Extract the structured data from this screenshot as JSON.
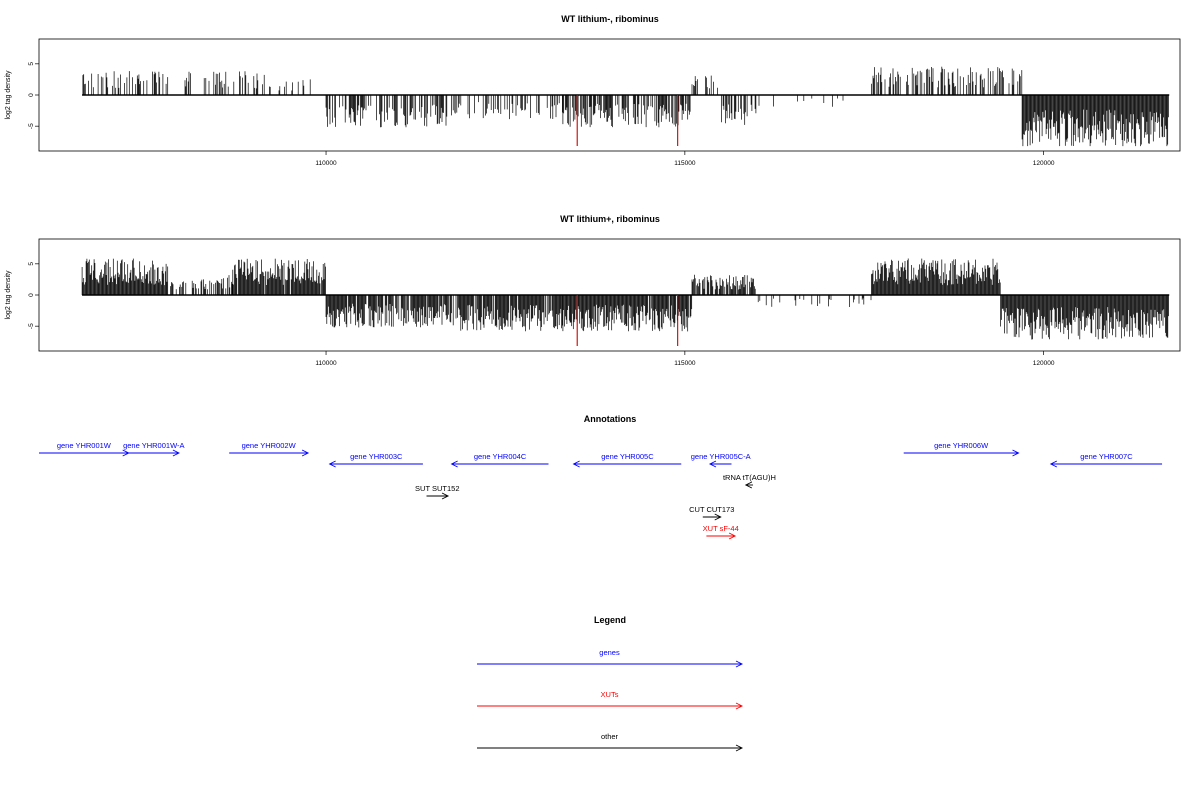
{
  "chart_data": [
    {
      "type": "bar",
      "title": "WT lithium-, ribominus",
      "ylabel": "log2 tag density",
      "xlim": [
        106000,
        121900
      ],
      "ylim": [
        -8.5,
        8.5
      ],
      "y_ticks": [
        -5,
        0,
        5
      ],
      "x_ticks": [
        110000,
        115000,
        120000
      ],
      "x_tick_labels": [
        "110000",
        "115000",
        "120000"
      ],
      "bar_color": "#000000",
      "highlight_color": "#cc0000",
      "highlights": [
        {
          "x": 113500,
          "value": -8.5
        },
        {
          "x": 114900,
          "value": -8.5
        }
      ],
      "density_profile": [
        {
          "start": 106600,
          "end": 107800,
          "value": 3,
          "density": 0.35
        },
        {
          "start": 107800,
          "end": 109200,
          "value": 3,
          "density": 0.25
        },
        {
          "start": 109200,
          "end": 110000,
          "value": 2,
          "density": 0.1
        },
        {
          "start": 110000,
          "end": 111800,
          "value": -4,
          "density": 0.55
        },
        {
          "start": 111800,
          "end": 113300,
          "value": -3,
          "density": 0.3
        },
        {
          "start": 113300,
          "end": 115100,
          "value": -4,
          "density": 0.55
        },
        {
          "start": 115100,
          "end": 115500,
          "value": 2.5,
          "density": 0.3
        },
        {
          "start": 115500,
          "end": 116000,
          "value": -4,
          "density": 0.5
        },
        {
          "start": 116000,
          "end": 117600,
          "value": -1.5,
          "density": 0.05
        },
        {
          "start": 117600,
          "end": 119700,
          "value": 3.5,
          "density": 0.45
        },
        {
          "start": 119700,
          "end": 121750,
          "value": -6.5,
          "density": 1.0
        }
      ]
    },
    {
      "type": "bar",
      "title": "WT lithium+, ribominus",
      "ylabel": "log2 tag density",
      "xlim": [
        106000,
        121900
      ],
      "ylim": [
        -8.5,
        8.5
      ],
      "y_ticks": [
        -5,
        0,
        5
      ],
      "x_ticks": [
        110000,
        115000,
        120000
      ],
      "x_tick_labels": [
        "110000",
        "115000",
        "120000"
      ],
      "bar_color": "#000000",
      "highlight_color": "#cc0000",
      "highlights": [
        {
          "x": 113500,
          "value": -8.5
        },
        {
          "x": 114900,
          "value": -8.5
        }
      ],
      "density_profile": [
        {
          "start": 106600,
          "end": 107800,
          "value": 4.5,
          "density": 1.0
        },
        {
          "start": 107800,
          "end": 108700,
          "value": 2.5,
          "density": 0.45
        },
        {
          "start": 108700,
          "end": 110000,
          "value": 4.5,
          "density": 0.95
        },
        {
          "start": 110000,
          "end": 111800,
          "value": -4,
          "density": 0.85
        },
        {
          "start": 111800,
          "end": 113300,
          "value": -4.5,
          "density": 0.9
        },
        {
          "start": 113300,
          "end": 115100,
          "value": -4.5,
          "density": 0.95
        },
        {
          "start": 115100,
          "end": 116000,
          "value": 2.5,
          "density": 0.75
        },
        {
          "start": 116000,
          "end": 117600,
          "value": -1.5,
          "density": 0.15
        },
        {
          "start": 117600,
          "end": 119400,
          "value": 4.5,
          "density": 1.0
        },
        {
          "start": 119400,
          "end": 121750,
          "value": -5.5,
          "density": 1.0
        }
      ]
    }
  ],
  "annotations": {
    "title": "Annotations",
    "xlim": [
      106000,
      121900
    ],
    "features": [
      {
        "label": "gene YHR001W",
        "start": 106000,
        "end": 107250,
        "strand": "+",
        "row": 0,
        "color": "#0000ff"
      },
      {
        "label": "gene YHR001W-A",
        "start": 107250,
        "end": 107950,
        "strand": "+",
        "row": 0,
        "color": "#0000ff"
      },
      {
        "label": "gene YHR002W",
        "start": 108650,
        "end": 109750,
        "strand": "+",
        "row": 0,
        "color": "#0000ff"
      },
      {
        "label": "gene YHR003C",
        "start": 110050,
        "end": 111350,
        "strand": "-",
        "row": 1,
        "color": "#0000ff"
      },
      {
        "label": "gene YHR004C",
        "start": 111750,
        "end": 113100,
        "strand": "-",
        "row": 1,
        "color": "#0000ff"
      },
      {
        "label": "gene YHR005C",
        "start": 113450,
        "end": 114950,
        "strand": "-",
        "row": 1,
        "color": "#0000ff"
      },
      {
        "label": "gene YHR005C-A",
        "start": 115350,
        "end": 115650,
        "strand": "-",
        "row": 1,
        "color": "#0000ff"
      },
      {
        "label": "gene YHR006W",
        "start": 118050,
        "end": 119650,
        "strand": "+",
        "row": 0,
        "color": "#0000ff"
      },
      {
        "label": "gene YHR007C",
        "start": 120100,
        "end": 121650,
        "strand": "-",
        "row": 1,
        "color": "#0000ff"
      },
      {
        "label": "tRNA tT(AGU)H",
        "start": 115850,
        "end": 115950,
        "strand": "-",
        "row": 2,
        "color": "#000000"
      },
      {
        "label": "SUT SUT152",
        "start": 111400,
        "end": 111700,
        "strand": "+",
        "row": 3,
        "color": "#000000"
      },
      {
        "label": "CUT CUT173",
        "start": 115250,
        "end": 115500,
        "strand": "+",
        "row": 4,
        "color": "#000000"
      },
      {
        "label": "XUT sF-44",
        "start": 115300,
        "end": 115700,
        "strand": "+",
        "row": 5,
        "color": "#ff0000"
      }
    ]
  },
  "legend": {
    "title": "Legend",
    "items": [
      {
        "label": "genes",
        "color": "#0000ff"
      },
      {
        "label": "XUTs",
        "color": "#ff0000"
      },
      {
        "label": "other",
        "color": "#000000"
      }
    ]
  }
}
